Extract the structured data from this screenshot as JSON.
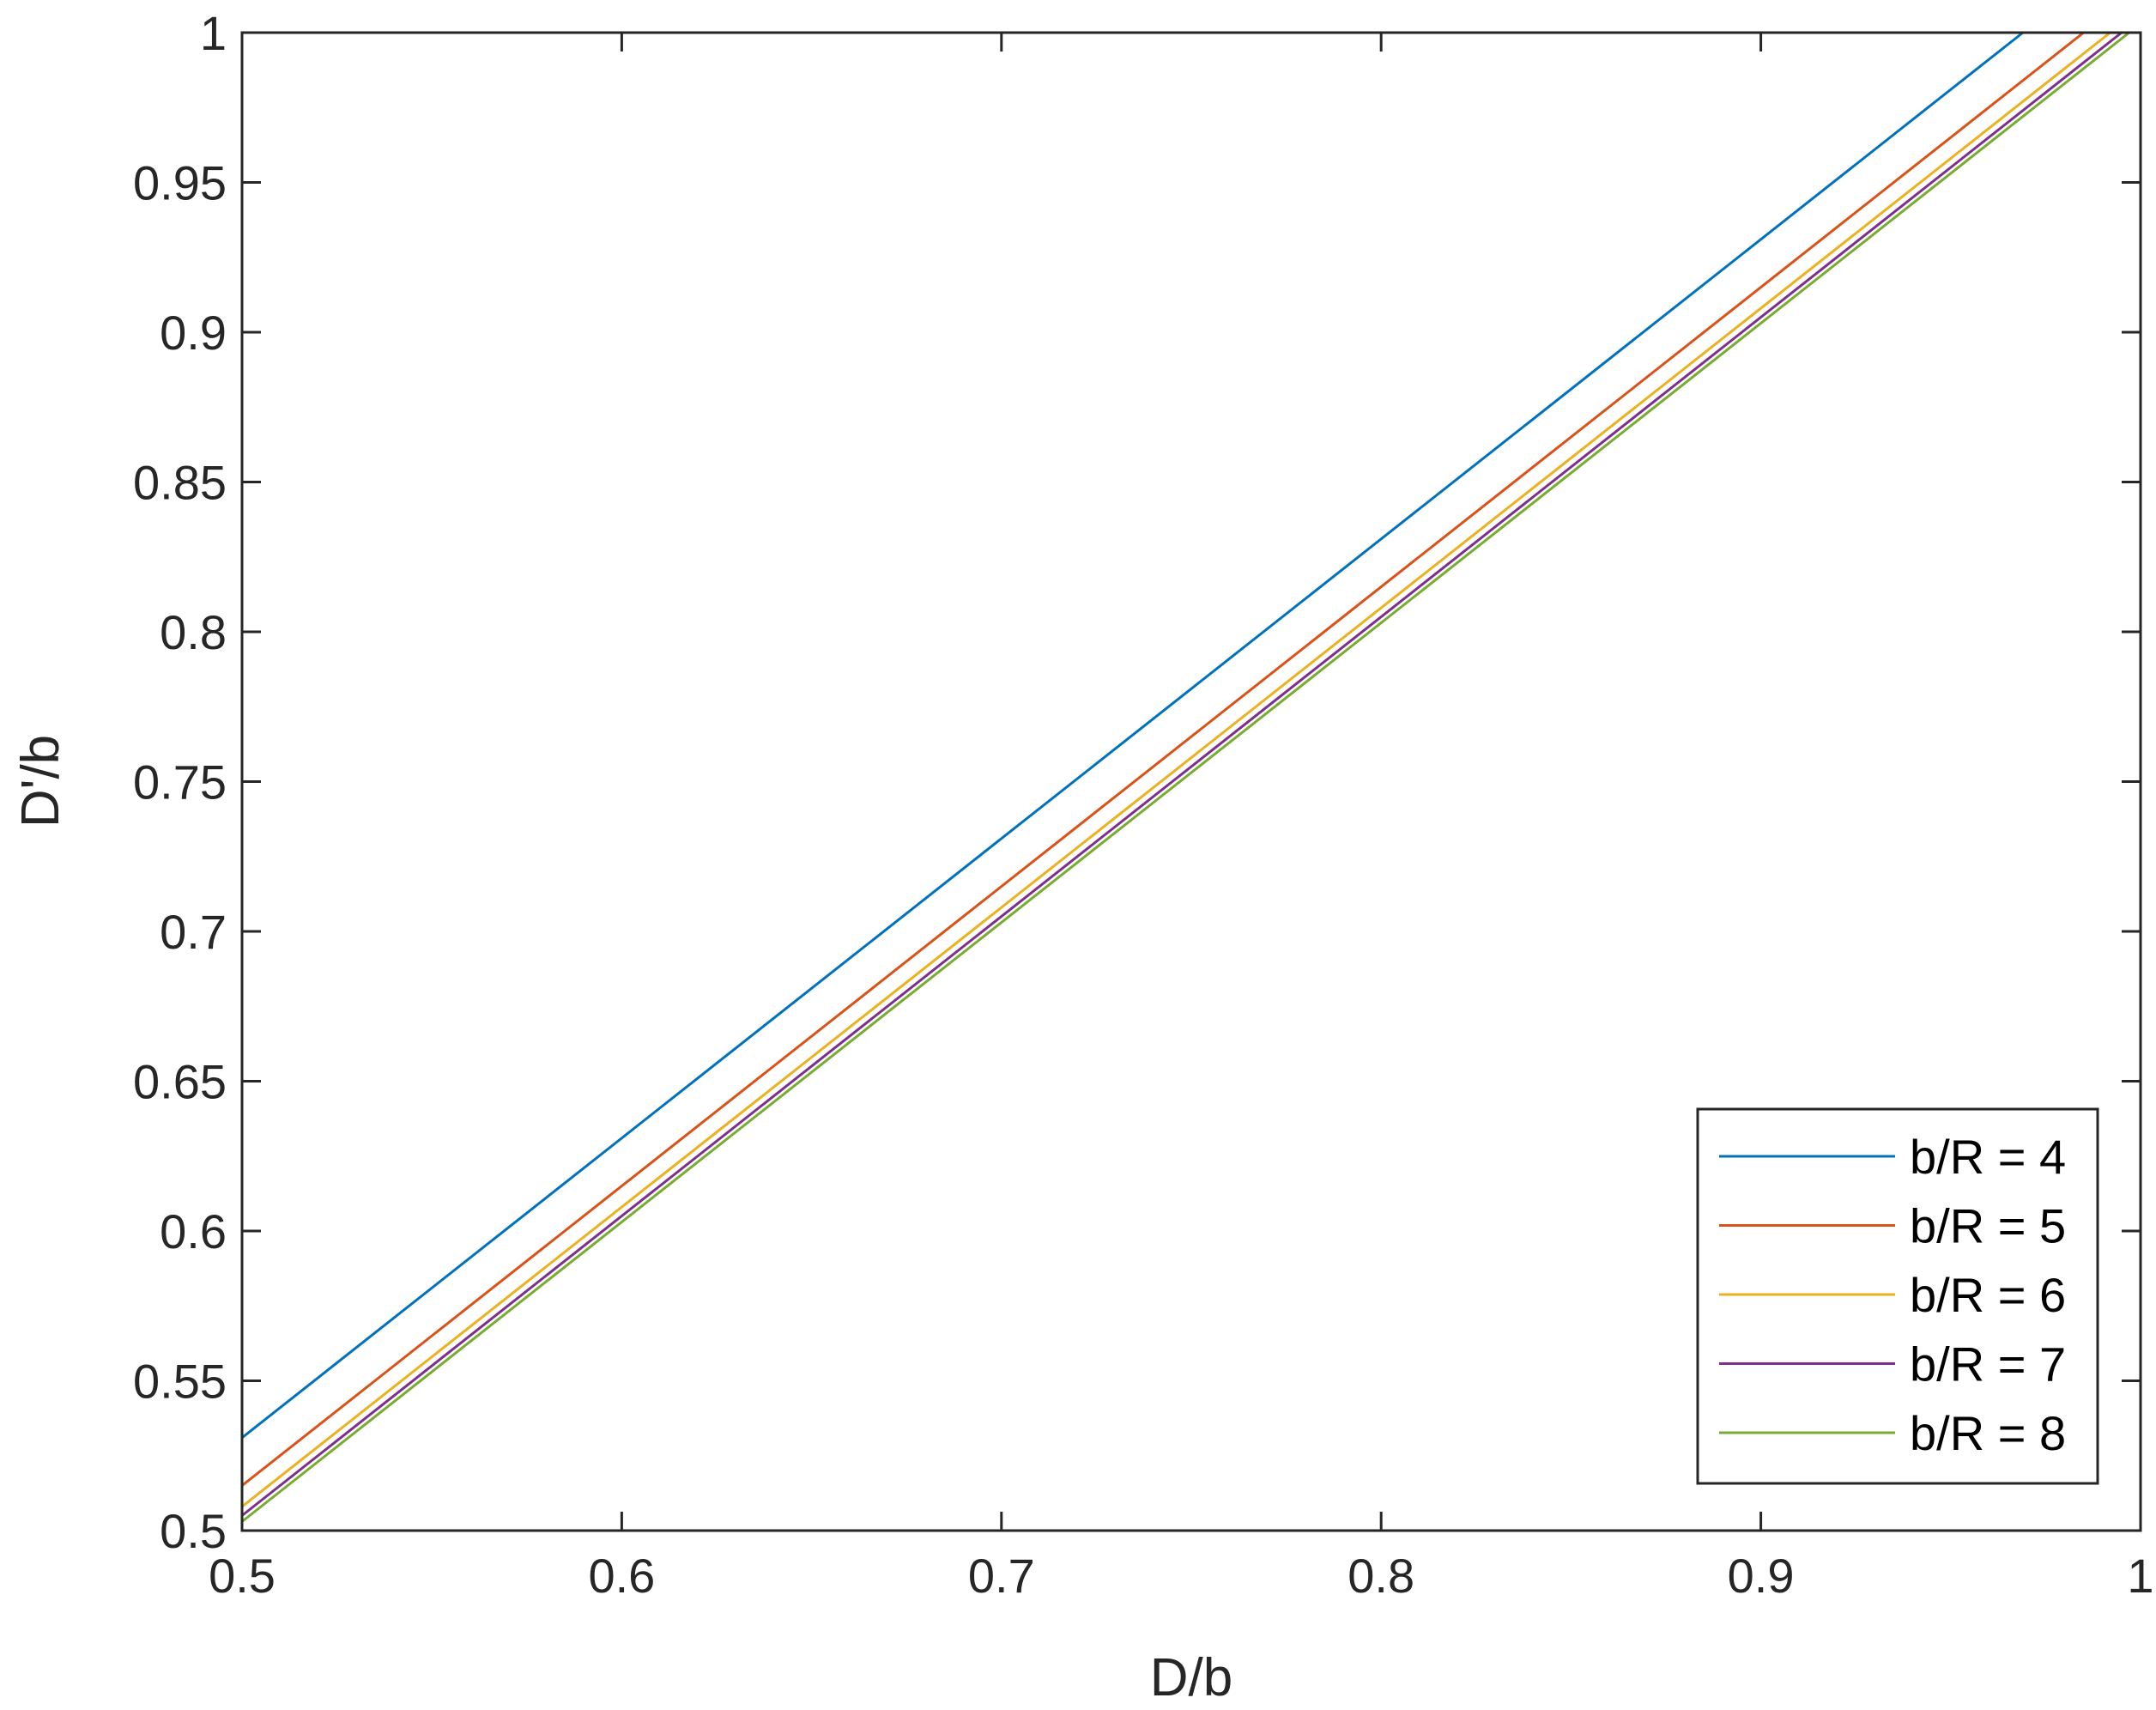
{
  "chart_data": {
    "type": "line",
    "title": "",
    "xlabel": "D/b",
    "ylabel": "D'/b",
    "xlim": [
      0.5,
      1
    ],
    "ylim": [
      0.5,
      1
    ],
    "x_ticks": [
      0.5,
      0.6,
      0.7,
      0.8,
      0.9,
      1
    ],
    "x_tick_labels": [
      "0.5",
      "0.6",
      "0.7",
      "0.8",
      "0.9",
      "1"
    ],
    "y_ticks": [
      0.5,
      0.55,
      0.6,
      0.65,
      0.7,
      0.75,
      0.8,
      0.85,
      0.9,
      0.95,
      1
    ],
    "y_tick_labels": [
      "0.5",
      "0.55",
      "0.6",
      "0.65",
      "0.7",
      "0.75",
      "0.8",
      "0.85",
      "0.9",
      "0.95",
      "1"
    ],
    "grid": false,
    "legend_position": "bottom-right",
    "series": [
      {
        "name": "b/R = 4",
        "color": "#0072BD",
        "x": [
          0.5,
          0.969
        ],
        "y": [
          0.531,
          1.0
        ]
      },
      {
        "name": "b/R = 5",
        "color": "#D95319",
        "x": [
          0.5,
          0.985
        ],
        "y": [
          0.515,
          1.0
        ]
      },
      {
        "name": "b/R = 6",
        "color": "#EDB120",
        "x": [
          0.5,
          0.992
        ],
        "y": [
          0.508,
          1.0
        ]
      },
      {
        "name": "b/R = 7",
        "color": "#7E2F8E",
        "x": [
          0.5,
          0.995
        ],
        "y": [
          0.505,
          1.0
        ]
      },
      {
        "name": "b/R = 8",
        "color": "#77AC30",
        "x": [
          0.5,
          0.997
        ],
        "y": [
          0.503,
          1.0
        ]
      }
    ]
  }
}
